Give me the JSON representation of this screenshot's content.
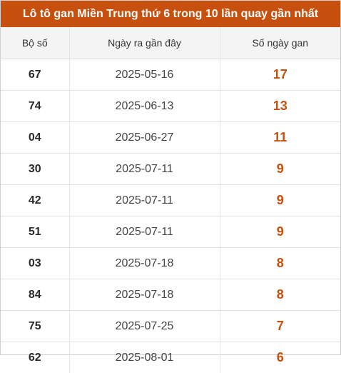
{
  "title": "Lô tô gan Miền Trung thứ 6 trong 10 lần quay gần nhất",
  "columns": [
    "Bộ số",
    "Ngày ra gần đây",
    "Số ngày gan"
  ],
  "accent_color": "#c8500e",
  "rows": [
    {
      "number": "67",
      "date": "2025-05-16",
      "days": "17"
    },
    {
      "number": "74",
      "date": "2025-06-13",
      "days": "13"
    },
    {
      "number": "04",
      "date": "2025-06-27",
      "days": "11"
    },
    {
      "number": "30",
      "date": "2025-07-11",
      "days": "9"
    },
    {
      "number": "42",
      "date": "2025-07-11",
      "days": "9"
    },
    {
      "number": "51",
      "date": "2025-07-11",
      "days": "9"
    },
    {
      "number": "03",
      "date": "2025-07-18",
      "days": "8"
    },
    {
      "number": "84",
      "date": "2025-07-18",
      "days": "8"
    },
    {
      "number": "75",
      "date": "2025-07-25",
      "days": "7"
    },
    {
      "number": "62",
      "date": "2025-08-01",
      "days": "6"
    }
  ]
}
